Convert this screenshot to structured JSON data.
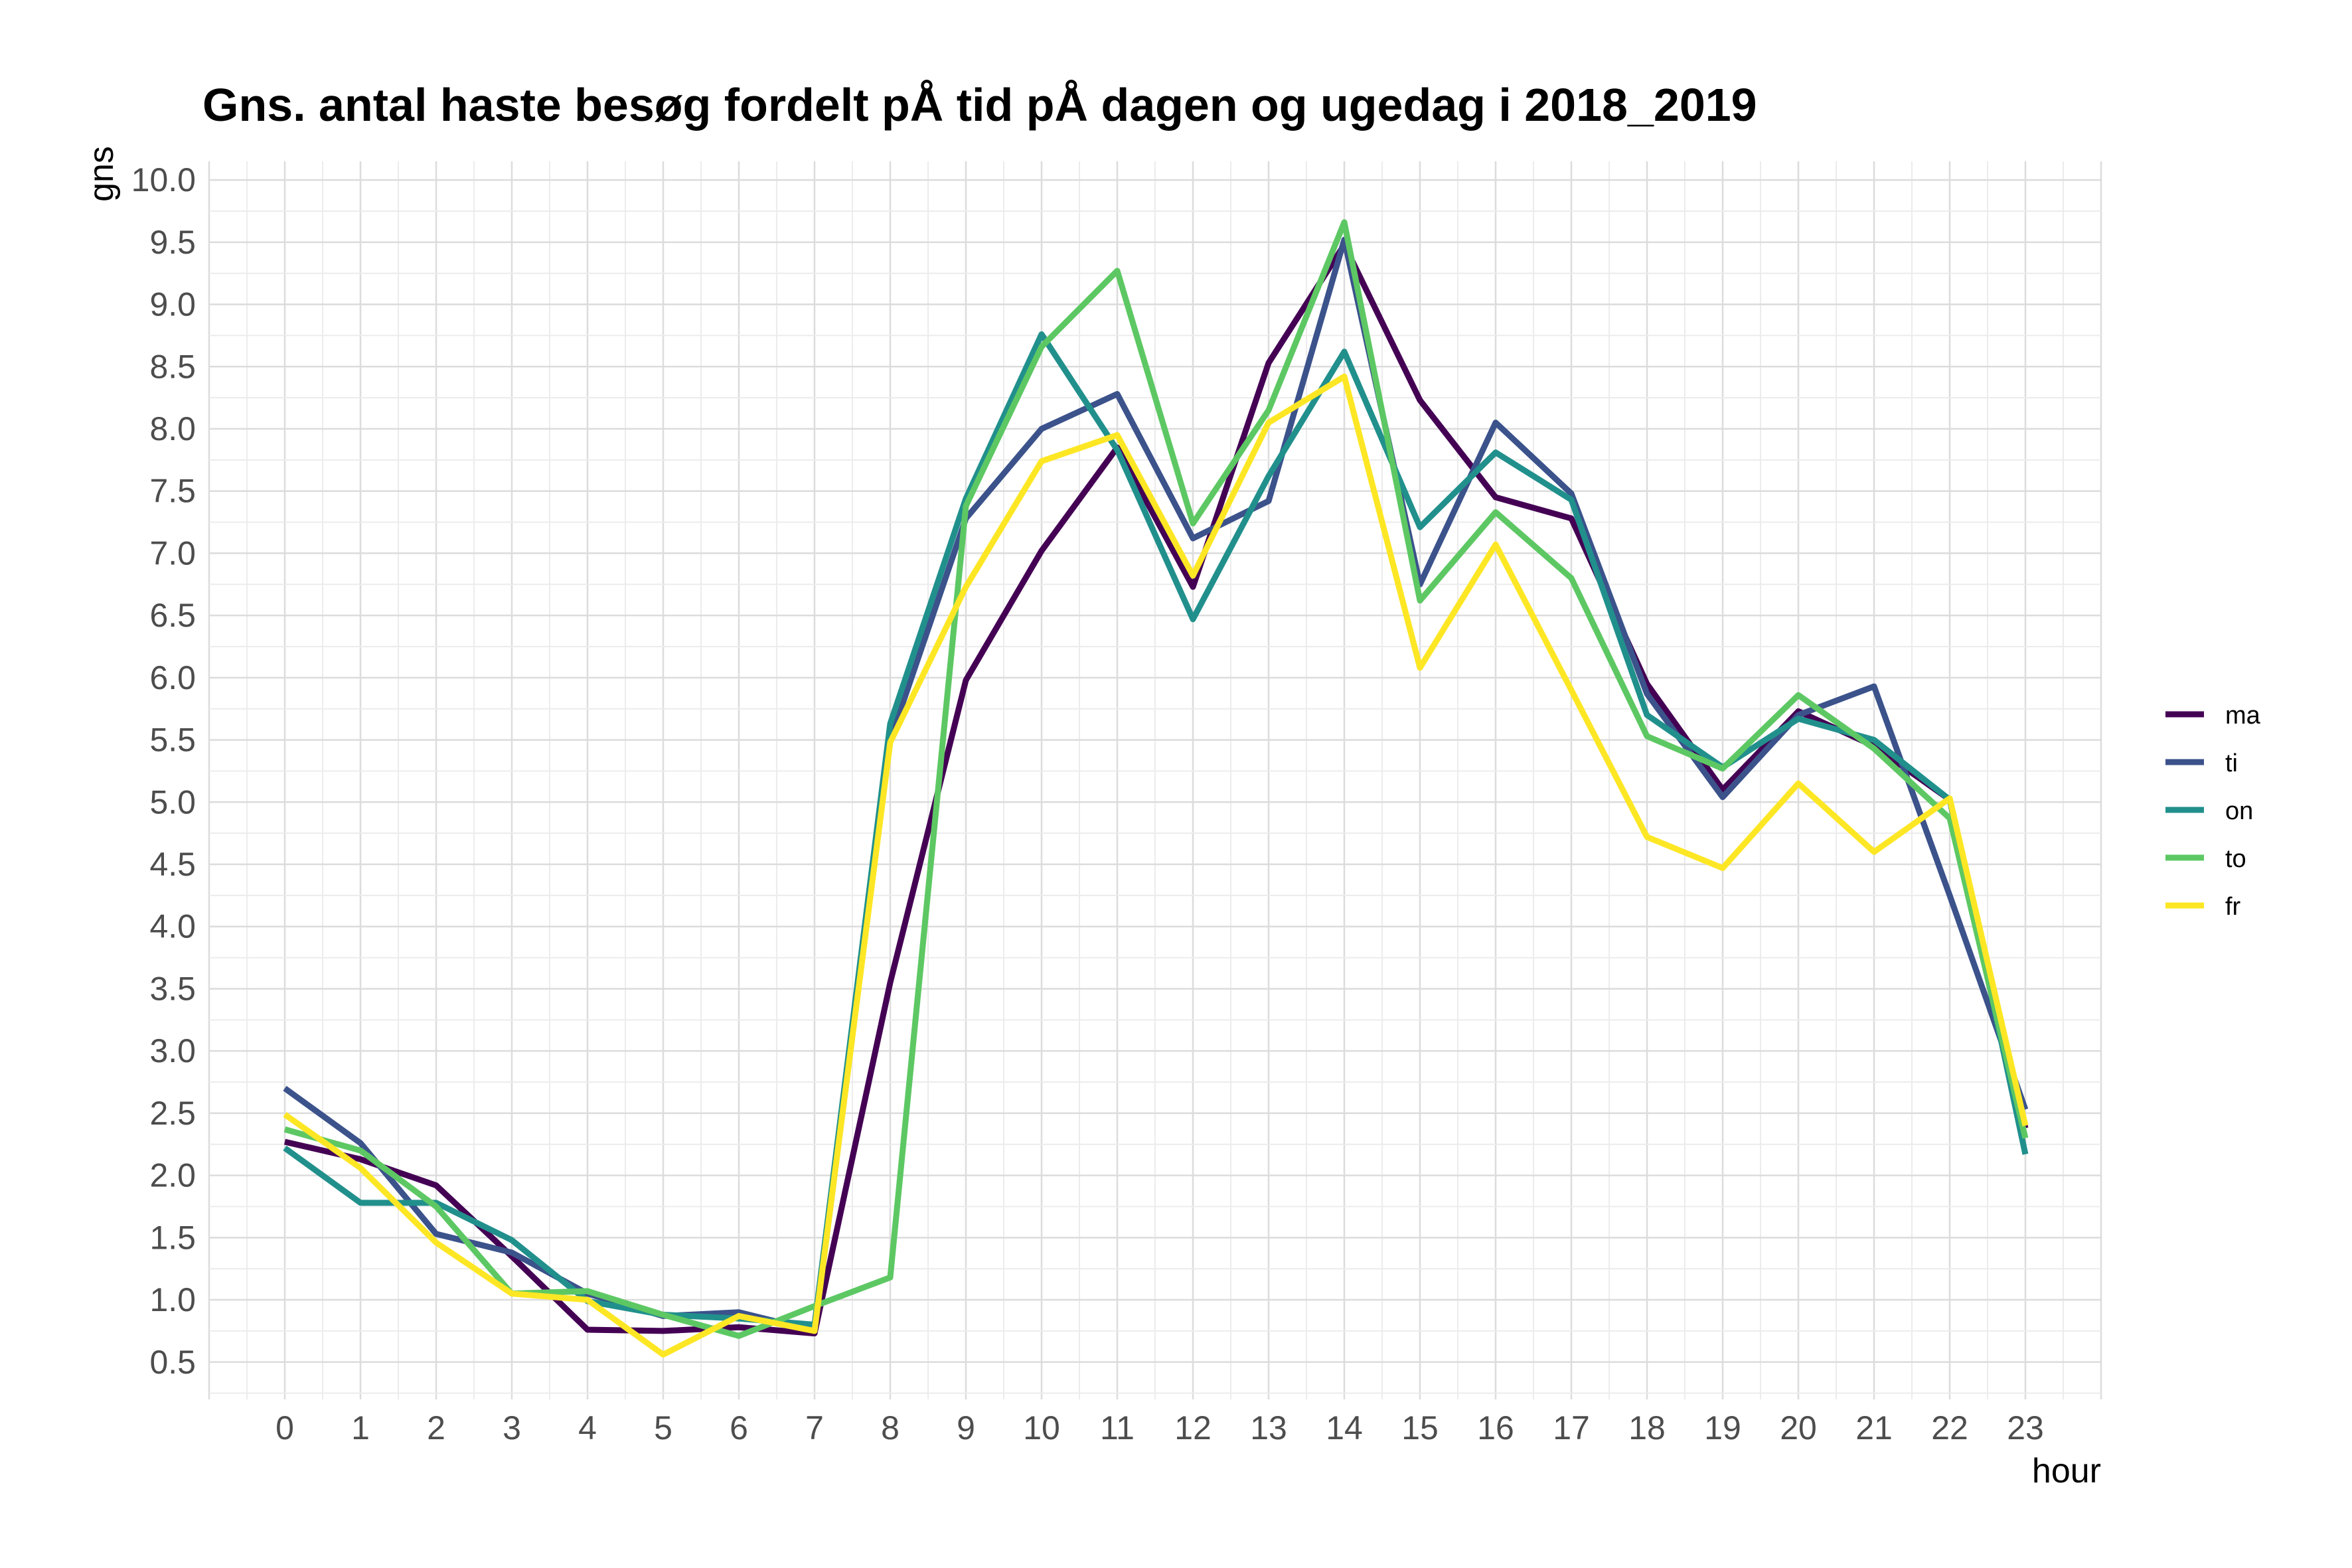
{
  "chart_data": {
    "type": "line",
    "title": "Gns. antal haste besøg fordelt pÅ tid pÅ dagen og ugedag i 2018_2019",
    "xlabel": "hour",
    "ylabel": "gns",
    "x": [
      0,
      1,
      2,
      3,
      4,
      5,
      6,
      7,
      8,
      9,
      10,
      11,
      12,
      13,
      14,
      15,
      16,
      17,
      18,
      19,
      20,
      21,
      22,
      23
    ],
    "xlim": [
      -1,
      24
    ],
    "ylim": [
      0.2,
      10.15
    ],
    "yticks": [
      0.5,
      1.0,
      1.5,
      2.0,
      2.5,
      3.0,
      3.5,
      4.0,
      4.5,
      5.0,
      5.5,
      6.0,
      6.5,
      7.0,
      7.5,
      8.0,
      8.5,
      9.0,
      9.5,
      10.0
    ],
    "ytick_labels": [
      "0.5",
      "1.0",
      "1.5",
      "2.0",
      "2.5",
      "3.0",
      "3.5",
      "4.0",
      "4.5",
      "5.0",
      "5.5",
      "6.0",
      "6.5",
      "7.0",
      "7.5",
      "8.0",
      "8.5",
      "9.0",
      "9.5",
      "10.0"
    ],
    "xtick_labels": [
      "0",
      "1",
      "2",
      "3",
      "4",
      "5",
      "6",
      "7",
      "8",
      "9",
      "10",
      "11",
      "12",
      "13",
      "14",
      "15",
      "16",
      "17",
      "18",
      "19",
      "20",
      "21",
      "22",
      "23"
    ],
    "grid": true,
    "legend_position": "right",
    "series": [
      {
        "name": "ma",
        "color": "#440154",
        "values": [
          2.27,
          2.13,
          1.92,
          1.35,
          0.76,
          0.75,
          0.78,
          0.73,
          3.55,
          5.98,
          7.02,
          7.85,
          6.73,
          8.53,
          9.48,
          8.23,
          7.45,
          7.28,
          5.95,
          5.1,
          5.73,
          5.45,
          5.02,
          2.38
        ]
      },
      {
        "name": "ti",
        "color": "#3b528b",
        "values": [
          2.7,
          2.26,
          1.53,
          1.38,
          1.05,
          0.87,
          0.9,
          0.75,
          5.5,
          7.28,
          8.0,
          8.28,
          7.12,
          7.42,
          9.52,
          6.75,
          8.05,
          7.48,
          5.87,
          5.04,
          5.7,
          5.93,
          4.25,
          2.53
        ]
      },
      {
        "name": "on",
        "color": "#21908c",
        "values": [
          2.22,
          1.78,
          1.78,
          1.48,
          0.99,
          0.88,
          0.85,
          0.8,
          5.63,
          7.44,
          8.76,
          7.83,
          6.47,
          7.62,
          8.62,
          7.21,
          7.81,
          7.43,
          5.7,
          5.28,
          5.67,
          5.5,
          5.02,
          2.17
        ]
      },
      {
        "name": "to",
        "color": "#5dc863",
        "values": [
          2.37,
          2.2,
          1.75,
          1.05,
          1.07,
          0.88,
          0.71,
          0.95,
          1.18,
          7.38,
          8.66,
          9.27,
          7.24,
          8.15,
          9.66,
          6.62,
          7.33,
          6.8,
          5.53,
          5.27,
          5.86,
          5.43,
          4.87,
          2.3
        ]
      },
      {
        "name": "fr",
        "color": "#fde725",
        "values": [
          2.49,
          2.06,
          1.46,
          1.05,
          1.0,
          0.56,
          0.87,
          0.75,
          5.48,
          6.73,
          7.74,
          7.95,
          6.82,
          8.05,
          8.42,
          6.08,
          7.07,
          5.9,
          4.72,
          4.47,
          5.15,
          4.6,
          5.03,
          2.4
        ]
      }
    ]
  }
}
